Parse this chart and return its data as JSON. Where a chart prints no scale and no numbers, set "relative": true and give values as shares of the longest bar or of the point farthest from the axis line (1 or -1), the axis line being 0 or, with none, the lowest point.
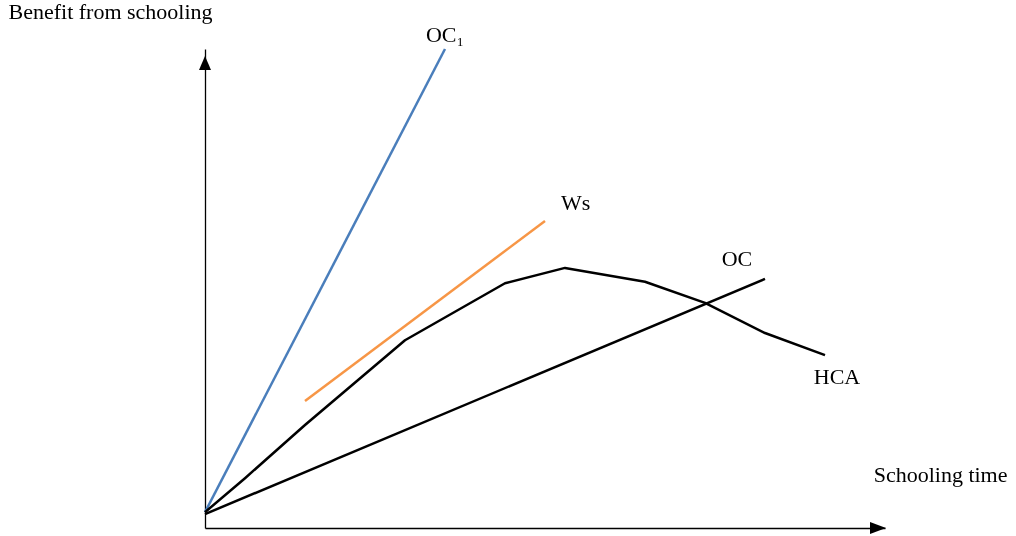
{
  "chart_data": {
    "type": "line",
    "relative": true,
    "legend": false,
    "xlabel": "Schooling time",
    "ylabel": "Benefit from schooling",
    "categories": [
      null,
      null,
      null,
      null,
      null,
      null,
      null,
      null,
      null,
      null,
      null,
      null,
      null,
      null,
      null,
      null,
      null,
      null,
      null,
      null,
      null,
      null,
      null,
      null,
      null,
      null,
      null,
      null,
      null,
      null,
      null,
      null,
      null,
      null,
      null
    ],
    "series": [
      {
        "name": "OC₁",
        "color": "#4a7ebb",
        "values": [
          0.033,
          null,
          null,
          null,
          null,
          null,
          null,
          null,
          null,
          null,
          null,
          null,
          1.0,
          null,
          null,
          null,
          null,
          null,
          null,
          null,
          null,
          null,
          null,
          null,
          null,
          null,
          null,
          null,
          null,
          null,
          null,
          null,
          null,
          null,
          null
        ]
      },
      {
        "name": "Ws",
        "color": "#f79646",
        "values": [
          null,
          null,
          null,
          null,
          null,
          0.265,
          null,
          null,
          null,
          null,
          null,
          null,
          null,
          null,
          null,
          null,
          null,
          0.641,
          null,
          null,
          null,
          null,
          null,
          null,
          null,
          null,
          null,
          null,
          null,
          null,
          null,
          null,
          null,
          null,
          null
        ]
      },
      {
        "name": "OC",
        "color": "#000000",
        "values": [
          0.029,
          null,
          null,
          null,
          null,
          null,
          null,
          null,
          null,
          null,
          null,
          null,
          null,
          null,
          null,
          null,
          null,
          null,
          null,
          null,
          null,
          null,
          null,
          null,
          null,
          null,
          null,
          null,
          0.52,
          null,
          null,
          null,
          null,
          null,
          null
        ]
      },
      {
        "name": "HCA",
        "color": "#000000",
        "values": [
          0.033,
          null,
          0.104,
          null,
          null,
          0.215,
          null,
          null,
          null,
          null,
          0.392,
          null,
          null,
          null,
          null,
          0.511,
          null,
          null,
          0.543,
          null,
          null,
          null,
          0.514,
          null,
          null,
          0.47,
          null,
          null,
          0.407,
          null,
          null,
          0.361,
          null,
          null,
          null
        ]
      }
    ]
  }
}
